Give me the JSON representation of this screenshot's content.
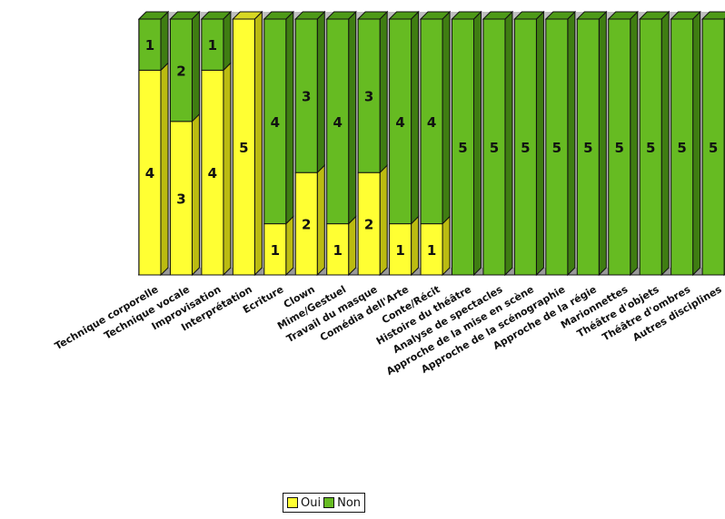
{
  "chart_data": {
    "type": "bar",
    "stacked": true,
    "categories": [
      "Technique corporelle",
      "Technique vocale",
      "Improvisation",
      "Interprétation",
      "Ecriture",
      "Clown",
      "Mime/Gestuel",
      "Travail du masque",
      "Comédia dell'Arte",
      "Conte/Récit",
      "Histoire du théâtre",
      "Analyse de spectacles",
      "Approche de la mise en scène",
      "Approche de la scénographie",
      "Approche de la régie",
      "Marionnettes",
      "Théâtre d'objets",
      "Théâtre d'ombres",
      "Autres disciplines"
    ],
    "series": [
      {
        "name": "Oui",
        "color": "#ffff33",
        "values": [
          4,
          3,
          4,
          5,
          1,
          2,
          1,
          2,
          1,
          1,
          0,
          0,
          0,
          0,
          0,
          0,
          0,
          0,
          0
        ]
      },
      {
        "name": "Non",
        "color": "#66bb22",
        "values": [
          1,
          2,
          1,
          0,
          4,
          3,
          4,
          3,
          4,
          4,
          5,
          5,
          5,
          5,
          5,
          5,
          5,
          5,
          5
        ]
      }
    ],
    "ylim": [
      0,
      5
    ],
    "legend_position": "bottom",
    "grid": false
  }
}
